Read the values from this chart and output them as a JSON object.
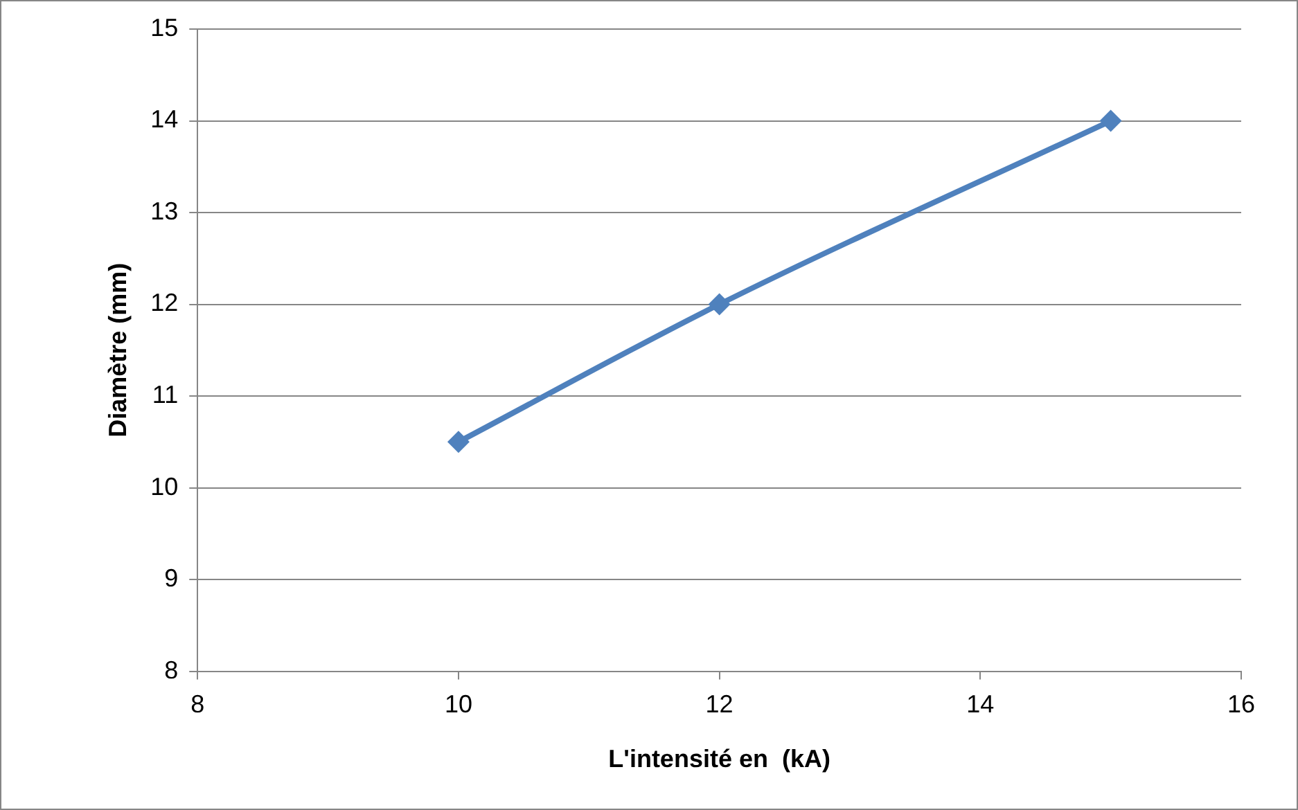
{
  "chart_data": {
    "type": "line",
    "xlabel": "L'intensité en  (kA)",
    "ylabel": "Diamètre (mm)",
    "x": [
      10,
      12,
      15
    ],
    "series": [
      {
        "color": "#4f81bd",
        "values": [
          10.5,
          12,
          14
        ]
      }
    ],
    "xlim": [
      8,
      16
    ],
    "xticks": [
      8,
      10,
      12,
      14,
      16
    ],
    "ylim": [
      8,
      15
    ],
    "yticks": [
      8,
      9,
      10,
      11,
      12,
      13,
      14,
      15
    ],
    "grid": "y",
    "legend": false,
    "marker": "diamond",
    "line_style": "solid"
  }
}
